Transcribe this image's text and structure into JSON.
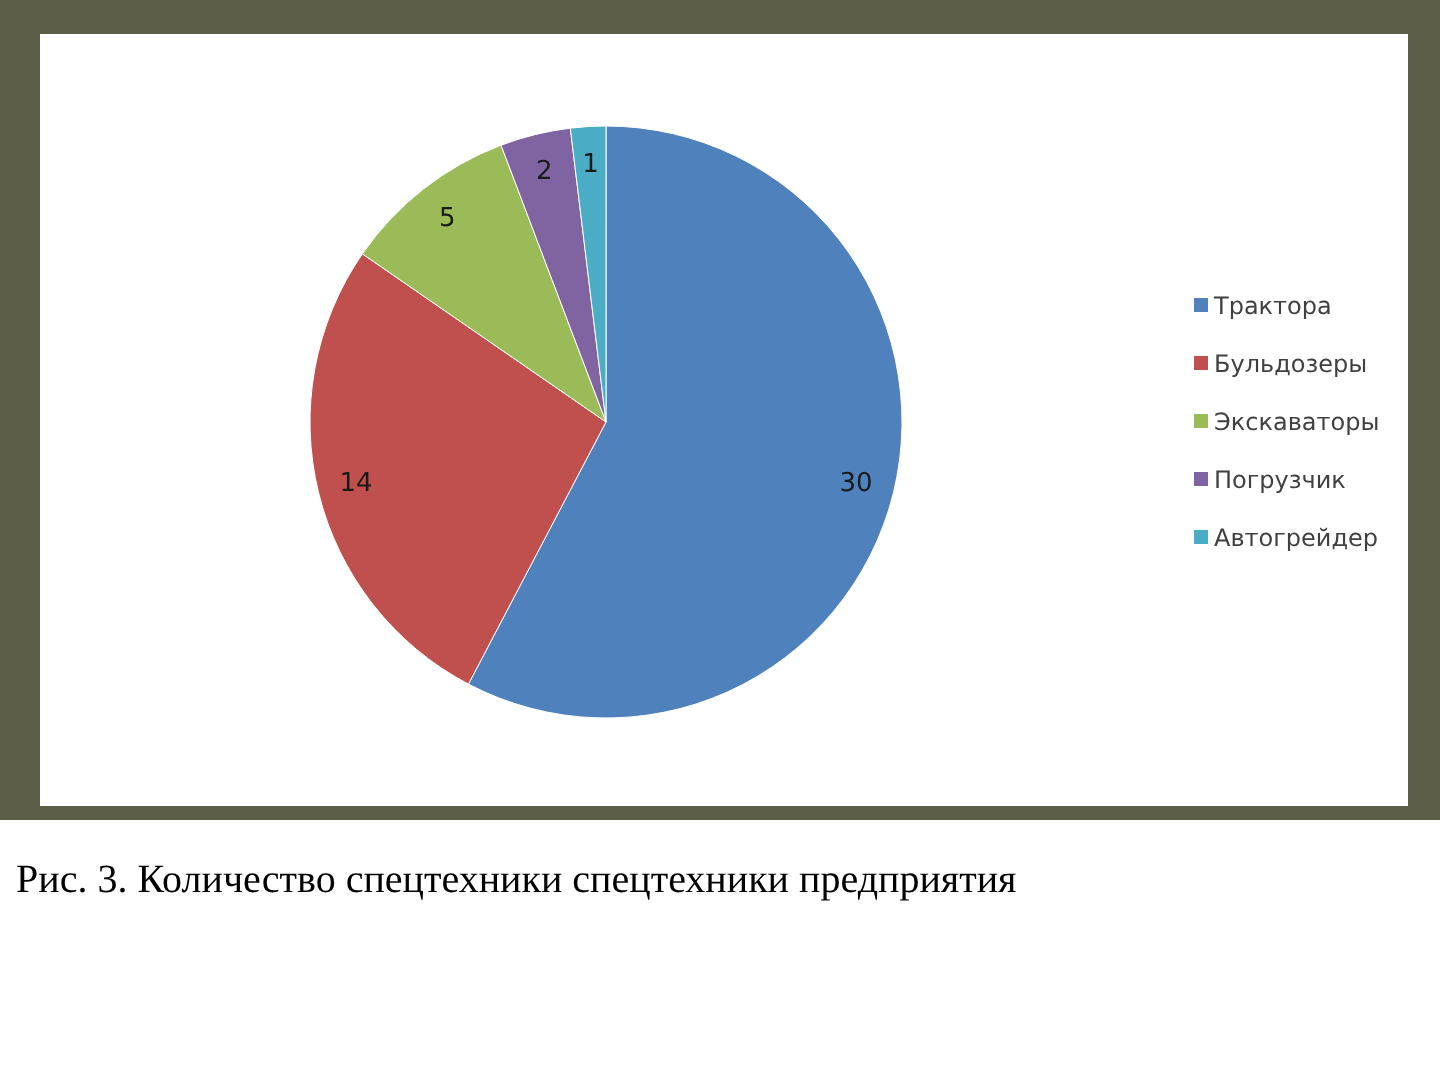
{
  "chart_data": {
    "type": "pie",
    "categories": [
      "Трактора",
      "Бульдозеры",
      "Экскаваторы",
      "Погрузчик",
      "Автогрейдер"
    ],
    "values": [
      30,
      14,
      5,
      2,
      1
    ],
    "colors": [
      "#4f81bd",
      "#c0504d",
      "#9bbb59",
      "#8064a2",
      "#4bacc6"
    ],
    "data_labels": true,
    "legend": "right",
    "annotations": [
      "Рис. 3. Количество спецтехники спецтехники предприятия"
    ]
  }
}
